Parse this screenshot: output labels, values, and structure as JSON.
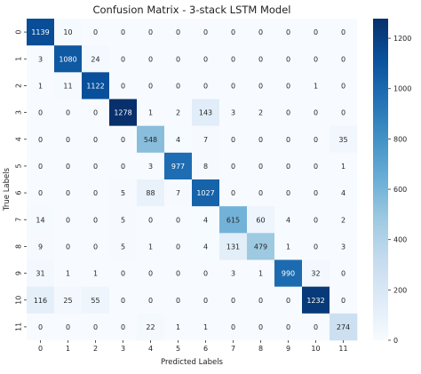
{
  "chart_data": {
    "type": "heatmap",
    "title": "Confusion Matrix - 3-stack LSTM Model",
    "xlabel": "Predicted Labels",
    "ylabel": "True Labels",
    "x_ticks": [
      "0",
      "1",
      "2",
      "3",
      "4",
      "5",
      "6",
      "7",
      "8",
      "9",
      "10",
      "11"
    ],
    "y_ticks": [
      "0",
      "1",
      "2",
      "3",
      "4",
      "5",
      "6",
      "7",
      "8",
      "9",
      "10",
      "11"
    ],
    "matrix": [
      [
        1139,
        10,
        0,
        0,
        0,
        0,
        0,
        0,
        0,
        0,
        0,
        0
      ],
      [
        3,
        1080,
        24,
        0,
        0,
        0,
        0,
        0,
        0,
        0,
        0,
        0
      ],
      [
        1,
        11,
        1122,
        0,
        0,
        0,
        0,
        0,
        0,
        0,
        1,
        0
      ],
      [
        0,
        0,
        0,
        1278,
        1,
        2,
        143,
        3,
        2,
        0,
        0,
        0
      ],
      [
        0,
        0,
        0,
        0,
        548,
        4,
        7,
        0,
        0,
        0,
        0,
        35
      ],
      [
        0,
        0,
        0,
        0,
        3,
        977,
        8,
        0,
        0,
        0,
        0,
        1
      ],
      [
        0,
        0,
        0,
        5,
        88,
        7,
        1027,
        0,
        0,
        0,
        0,
        4
      ],
      [
        14,
        0,
        0,
        5,
        0,
        0,
        4,
        615,
        60,
        4,
        0,
        2
      ],
      [
        9,
        0,
        0,
        5,
        1,
        0,
        4,
        131,
        479,
        1,
        0,
        3
      ],
      [
        31,
        1,
        1,
        0,
        0,
        0,
        0,
        3,
        1,
        990,
        32,
        0
      ],
      [
        116,
        25,
        55,
        0,
        0,
        0,
        0,
        0,
        0,
        0,
        1232,
        0
      ],
      [
        0,
        0,
        0,
        0,
        22,
        1,
        1,
        0,
        0,
        0,
        0,
        274
      ]
    ],
    "colorbar": {
      "colormap": "Blues",
      "range": [
        0,
        1278
      ],
      "ticks": [
        0,
        200,
        400,
        600,
        800,
        1000,
        1200
      ],
      "tick_labels": [
        "0",
        "200",
        "400",
        "600",
        "800",
        "1000",
        "1200"
      ]
    }
  }
}
